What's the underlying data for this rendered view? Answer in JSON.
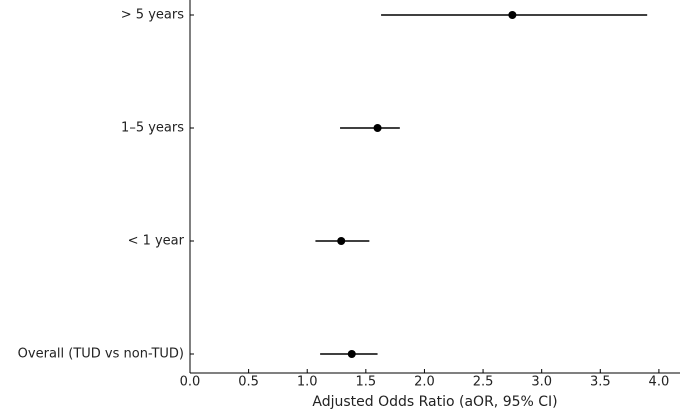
{
  "chart_data": {
    "type": "forest",
    "x_label": "Adjusted Odds Ratio (aOR, 95% CI)",
    "categories": [
      "> 5 years",
      "1–5 years",
      "< 1 year",
      "Overall (TUD vs non-TUD)"
    ],
    "estimates": [
      2.75,
      1.6,
      1.29,
      1.38
    ],
    "lower": [
      1.63,
      1.28,
      1.07,
      1.11
    ],
    "upper": [
      3.9,
      1.79,
      1.53,
      1.6
    ],
    "color": "#000000",
    "xlim": [
      0,
      4.18
    ],
    "xticks": [
      {
        "value": 0,
        "label": "0.0"
      },
      {
        "value": 0.5,
        "label": "0.5"
      },
      {
        "value": 1,
        "label": "1.0"
      },
      {
        "value": 1.5,
        "label": "1.5"
      },
      {
        "value": 2,
        "label": "2.0"
      },
      {
        "value": 2.5,
        "label": "2.5"
      },
      {
        "value": 3,
        "label": "3.0"
      },
      {
        "value": 3.5,
        "label": "3.5"
      },
      {
        "value": 4,
        "label": "4.0"
      }
    ]
  }
}
